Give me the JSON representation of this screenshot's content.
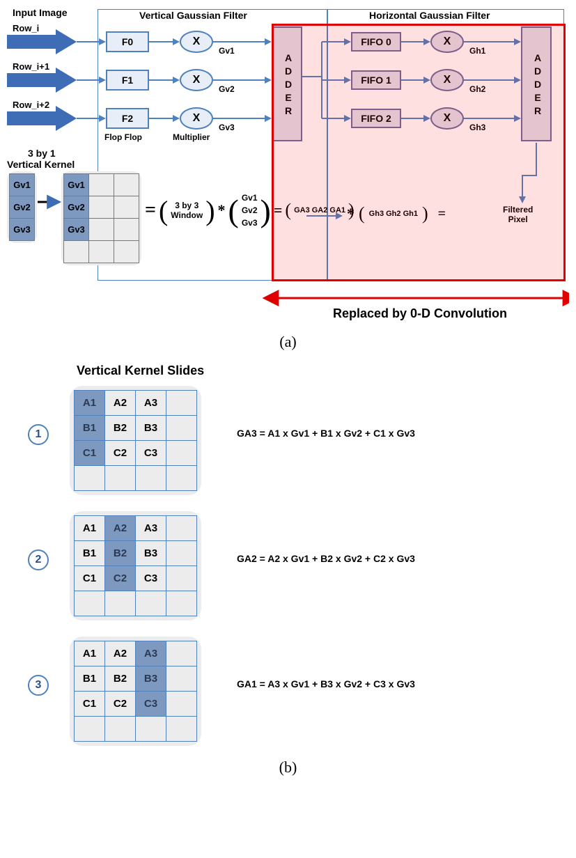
{
  "captions": {
    "a": "(a)",
    "b": "(b)"
  },
  "partA": {
    "input_image_label": "Input Image",
    "rows": [
      "Row_i",
      "Row_i+1",
      "Row_i+2"
    ],
    "vert_filter_title": "Vertical Gaussian Filter",
    "horz_filter_title": "Horizontal Gaussian Filter",
    "flops": [
      "F0",
      "F1",
      "F2"
    ],
    "flop_caption": "Flop Flop",
    "mult_symbol": "X",
    "mult_caption": "Multiplier",
    "gv": [
      "Gv1",
      "Gv2",
      "Gv3"
    ],
    "adder_label": "ADDER",
    "fifos": [
      "FIFO 0",
      "FIFO 1",
      "FIFO 2"
    ],
    "gh": [
      "Gh1",
      "Gh2",
      "Gh3"
    ],
    "filtered_pixel": "Filtered\nPixel",
    "kernel_title_line1": "3 by 1",
    "kernel_title_line2": "Vertical Kernel",
    "kernel_vals": [
      "Gv1",
      "Gv2",
      "Gv3"
    ],
    "window_text": "3 by 3\nWindow",
    "ga_row": "GA3 GA2 GA1",
    "gh_row": "Gh3 Gh2 Gh1",
    "replaced_label": "Replaced by 0-D Convolution",
    "colors": {
      "blue_outline": "#4f81bd",
      "blue_fill": "#e8eef7",
      "arrow_blue": "#3e6db5",
      "adder_outline": "#6b6b9b",
      "adder_fill": "#e0e0ec",
      "red": "#e00000",
      "red_fill": "rgba(255,0,0,0.12)",
      "grid_bg": "#ececec",
      "hl_bg": "#7d99bf"
    }
  },
  "partB": {
    "title": "Vertical Kernel Slides",
    "grid_labels": [
      [
        "A1",
        "A2",
        "A3"
      ],
      [
        "B1",
        "B2",
        "B3"
      ],
      [
        "C1",
        "C2",
        "C3"
      ]
    ],
    "steps": [
      {
        "n": "1",
        "hl_col": 0,
        "eq": "GA3 = A1 x Gv1 + B1 x Gv2 + C1 x Gv3"
      },
      {
        "n": "2",
        "hl_col": 1,
        "eq": "GA2 = A2 x Gv1 + B2 x Gv2 + C2 x Gv3"
      },
      {
        "n": "3",
        "hl_col": 2,
        "eq": "GA1 = A3 x Gv1 + B3 x Gv2 + C3 x Gv3"
      }
    ]
  }
}
